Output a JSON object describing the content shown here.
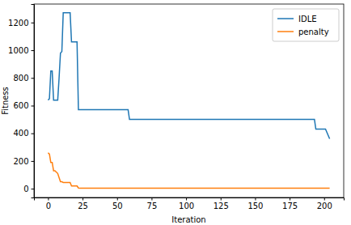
{
  "chart_data": {
    "type": "line",
    "x_label": "Iteration",
    "y_label": "Fitness",
    "x": [
      0,
      1,
      2,
      3,
      4,
      5,
      7,
      8,
      9,
      10,
      11,
      12,
      16,
      17,
      18,
      21,
      22,
      23,
      58,
      59,
      193,
      194,
      201,
      204
    ],
    "series": [
      {
        "name": "IDLE",
        "color": "#1f77b4",
        "values": [
          640,
          650,
          850,
          850,
          640,
          640,
          640,
          800,
          980,
          990,
          1270,
          1270,
          1270,
          1060,
          1060,
          1060,
          570,
          570,
          570,
          500,
          500,
          430,
          430,
          360
        ]
      },
      {
        "name": "penalty",
        "color": "#ff7f0e",
        "values": [
          260,
          250,
          190,
          190,
          130,
          130,
          110,
          80,
          50,
          50,
          45,
          45,
          45,
          20,
          20,
          20,
          5,
          3,
          3,
          3,
          3,
          3,
          3,
          3
        ]
      }
    ],
    "xlim": [
      -10.2,
      214.2
    ],
    "ylim": [
      -63.5,
      1333.5
    ],
    "xticks": [
      0,
      25,
      50,
      75,
      100,
      125,
      150,
      175,
      200
    ],
    "yticks": [
      0,
      200,
      400,
      600,
      800,
      1000,
      1200
    ],
    "legend": "upper right",
    "grid": false
  }
}
